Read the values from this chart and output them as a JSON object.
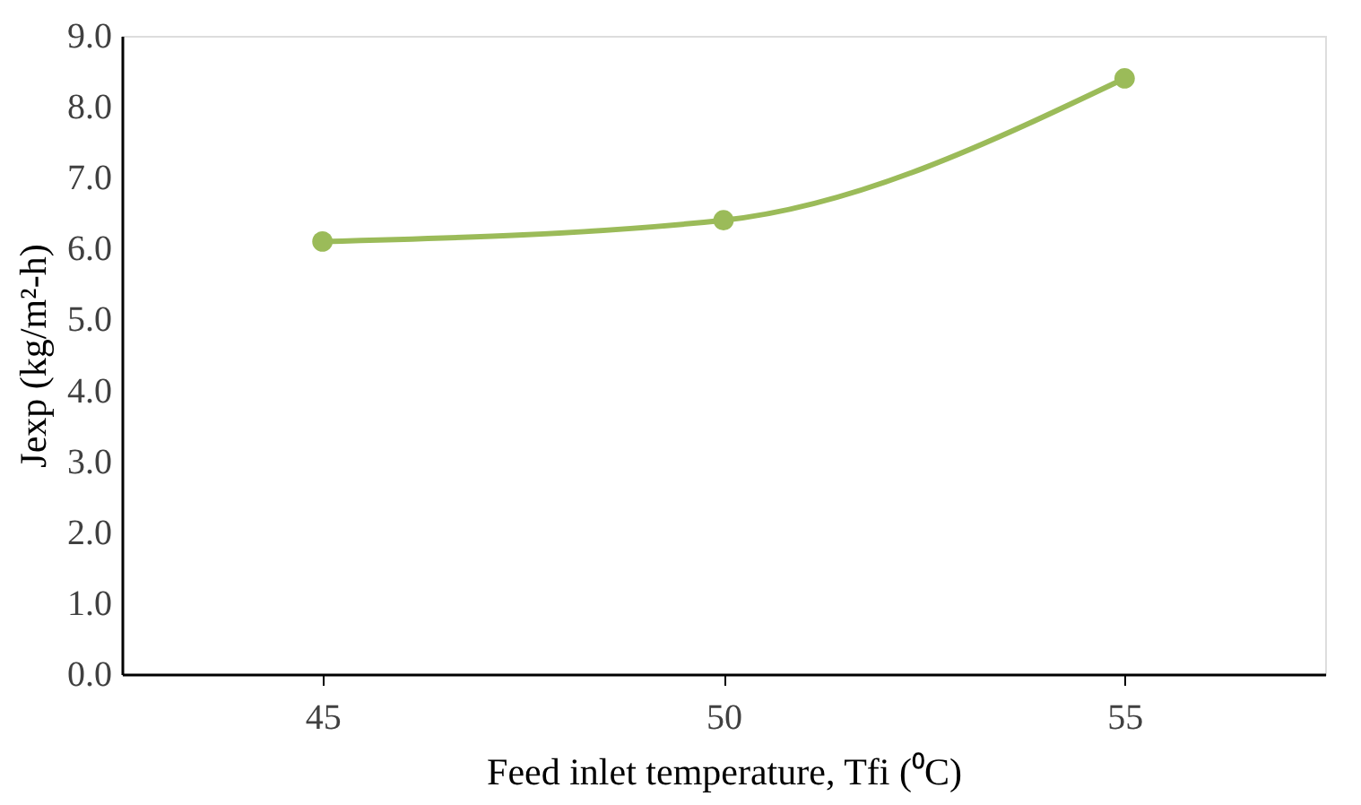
{
  "chart_data": {
    "type": "line",
    "xlabel": "Feed inlet temperature, Tfi (⁰C)",
    "ylabel": "Jexp (kg/m²-h)",
    "categories": [
      "45",
      "50",
      "55"
    ],
    "series": [
      {
        "color": "#9bbb59",
        "values": [
          6.1,
          6.4,
          8.4
        ]
      }
    ],
    "ylim": [
      0,
      9
    ],
    "yticks": [
      {
        "value": 0,
        "label": "0.0"
      },
      {
        "value": 1,
        "label": "1.0"
      },
      {
        "value": 2,
        "label": "2.0"
      },
      {
        "value": 3,
        "label": "3.0"
      },
      {
        "value": 4,
        "label": "4.0"
      },
      {
        "value": 5,
        "label": "5.0"
      },
      {
        "value": 6,
        "label": "6.0"
      },
      {
        "value": 7,
        "label": "7.0"
      },
      {
        "value": 8,
        "label": "8.0"
      },
      {
        "value": 9,
        "label": "9.0"
      }
    ],
    "grid": false,
    "marker": "circle",
    "line_style": "solid"
  }
}
